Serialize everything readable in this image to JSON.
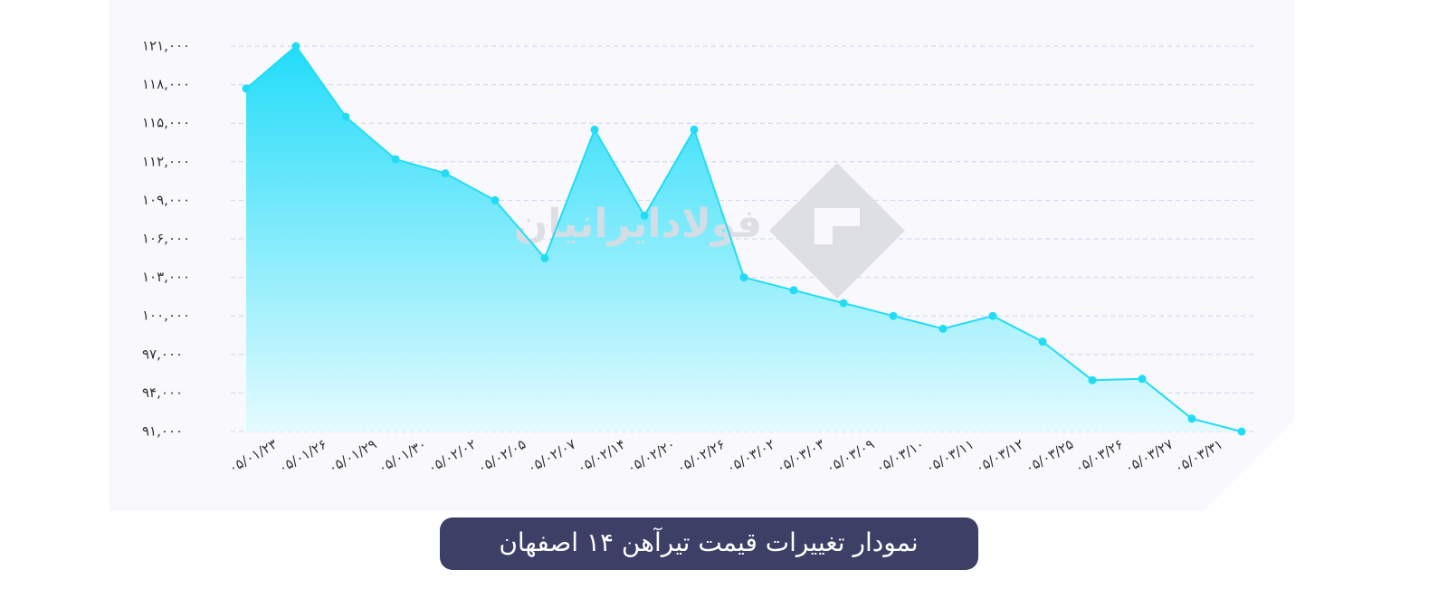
{
  "chart_data": {
    "type": "area",
    "title": "نمودار تغییرات قیمت تیرآهن ۱۴ اصفهان",
    "watermark": "فولادایرانیان",
    "categories": [
      "۰۵/۰۱/۲۳",
      "۰۵/۰۱/۲۶",
      "۰۵/۰۱/۲۹",
      "۰۵/۰۱/۳۰",
      "۰۵/۰۲/۰۲",
      "۰۵/۰۲/۰۵",
      "۰۵/۰۲/۰۷",
      "۰۵/۰۲/۱۴",
      "۰۵/۰۲/۲۰",
      "۰۵/۰۲/۲۶",
      "۰۵/۰۳/۰۲",
      "۰۵/۰۳/۰۳",
      "۰۵/۰۳/۰۹",
      "۰۵/۰۳/۱۰",
      "۰۵/۰۳/۱۱",
      "۰۵/۰۳/۱۲",
      "۰۵/۰۳/۲۵",
      "۰۵/۰۳/۲۶",
      "۰۵/۰۳/۲۷",
      "۰۵/۰۳/۳۱",
      null
    ],
    "values": [
      117700,
      121000,
      115500,
      112200,
      111100,
      109000,
      104500,
      114500,
      107800,
      114500,
      103000,
      102000,
      101000,
      100000,
      99000,
      100000,
      98000,
      95000,
      95100,
      92000,
      91000
    ],
    "color": "#22dcf5",
    "ylim": [
      91000,
      121000
    ],
    "yticks": [
      {
        "value": 91000,
        "label": "۹۱,۰۰۰"
      },
      {
        "value": 94000,
        "label": "۹۴,۰۰۰"
      },
      {
        "value": 97000,
        "label": "۹۷,۰۰۰"
      },
      {
        "value": 100000,
        "label": "۱۰۰,۰۰۰"
      },
      {
        "value": 103000,
        "label": "۱۰۳,۰۰۰"
      },
      {
        "value": 106000,
        "label": "۱۰۶,۰۰۰"
      },
      {
        "value": 109000,
        "label": "۱۰۹,۰۰۰"
      },
      {
        "value": 112000,
        "label": "۱۱۲,۰۰۰"
      },
      {
        "value": 115000,
        "label": "۱۱۵,۰۰۰"
      },
      {
        "value": 118000,
        "label": "۱۱۸,۰۰۰"
      },
      {
        "value": 121000,
        "label": "۱۲۱,۰۰۰"
      }
    ],
    "grid": true
  }
}
